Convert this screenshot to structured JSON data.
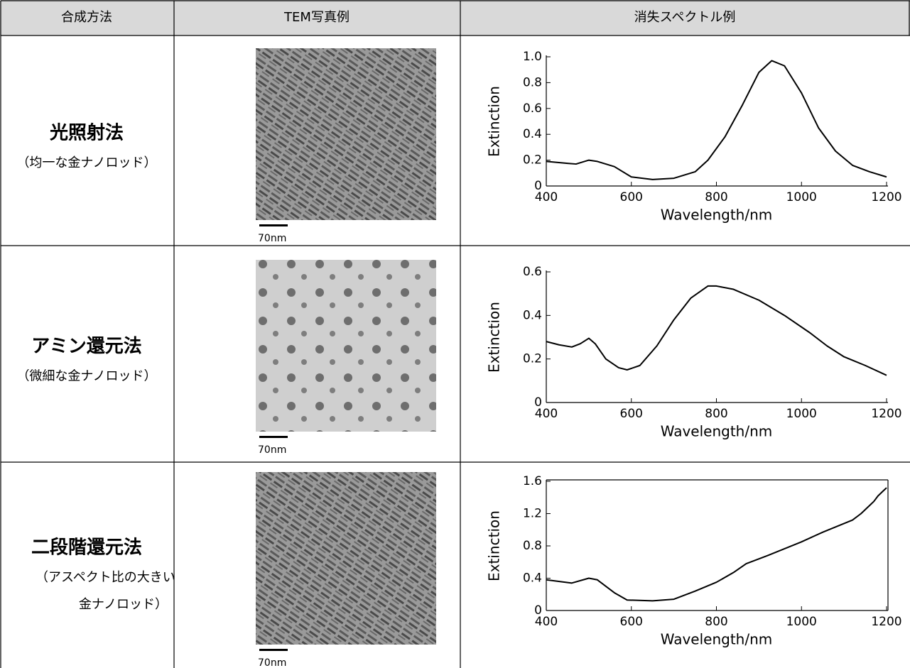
{
  "table": {
    "headers": [
      "合成方法",
      "TEM写真例",
      "消失スペクトル例"
    ],
    "rows": [
      {
        "method": "光照射法",
        "note": [
          "（均一な金ナノロッド）"
        ],
        "scale_bar": "70nm",
        "spectrum": {
          "type": "line",
          "xlabel": "Wavelength/nm",
          "ylabel": "Extinction",
          "x": [
            400,
            450,
            470,
            500,
            520,
            560,
            600,
            650,
            700,
            750,
            780,
            820,
            860,
            900,
            930,
            960,
            1000,
            1040,
            1080,
            1120,
            1160,
            1200
          ],
          "values": [
            0.19,
            0.175,
            0.17,
            0.2,
            0.19,
            0.15,
            0.07,
            0.05,
            0.06,
            0.11,
            0.2,
            0.38,
            0.62,
            0.88,
            0.97,
            0.93,
            0.72,
            0.45,
            0.27,
            0.16,
            0.11,
            0.07
          ],
          "color": "#000000",
          "xlim": [
            400,
            1200
          ],
          "ylim": [
            0,
            1
          ],
          "xticks": [
            400,
            600,
            800,
            1000,
            1200
          ],
          "yticks": [
            0,
            0.2,
            0.4,
            0.6,
            0.8,
            {
              "value": 1,
              "label": "1.0"
            }
          ],
          "frame": false
        }
      },
      {
        "method": "アミン還元法",
        "note": [
          "（微細な金ナノロッド）"
        ],
        "scale_bar": "70nm",
        "spectrum": {
          "type": "line",
          "xlabel": "Wavelength/nm",
          "ylabel": "Extinction",
          "x": [
            400,
            430,
            460,
            480,
            500,
            515,
            540,
            570,
            590,
            620,
            660,
            700,
            740,
            780,
            800,
            840,
            900,
            960,
            1020,
            1060,
            1100,
            1150,
            1200
          ],
          "values": [
            0.28,
            0.265,
            0.255,
            0.27,
            0.295,
            0.27,
            0.2,
            0.16,
            0.15,
            0.17,
            0.26,
            0.38,
            0.48,
            0.535,
            0.535,
            0.52,
            0.47,
            0.4,
            0.32,
            0.26,
            0.21,
            0.17,
            0.125
          ],
          "color": "#000000",
          "xlim": [
            400,
            1200
          ],
          "ylim": [
            0,
            0.6
          ],
          "xticks": [
            400,
            600,
            800,
            1000,
            1200
          ],
          "yticks": [
            0,
            0.2,
            0.4,
            0.6
          ],
          "frame": false
        }
      },
      {
        "method": "二段階還元法",
        "note": [
          "（アスペクト比の大きい",
          "金ナノロッド）"
        ],
        "scale_bar": "70nm",
        "spectrum": {
          "type": "line",
          "xlabel": "Wavelength/nm",
          "ylabel": "Extinction",
          "x": [
            400,
            460,
            500,
            520,
            560,
            590,
            650,
            700,
            750,
            800,
            840,
            870,
            920,
            1000,
            1050,
            1120,
            1140,
            1160,
            1170,
            1180,
            1190,
            1200
          ],
          "values": [
            0.38,
            0.34,
            0.4,
            0.38,
            0.22,
            0.13,
            0.12,
            0.14,
            0.24,
            0.35,
            0.47,
            0.58,
            0.68,
            0.85,
            0.97,
            1.12,
            1.2,
            1.3,
            1.35,
            1.42,
            1.47,
            1.52
          ],
          "color": "#000000",
          "xlim": [
            400,
            1200
          ],
          "ylim": [
            0,
            1.6
          ],
          "xticks": [
            400,
            600,
            800,
            1000,
            1200
          ],
          "yticks": [
            0,
            0.4,
            0.8,
            1.2,
            1.6
          ],
          "frame": true
        }
      }
    ]
  }
}
